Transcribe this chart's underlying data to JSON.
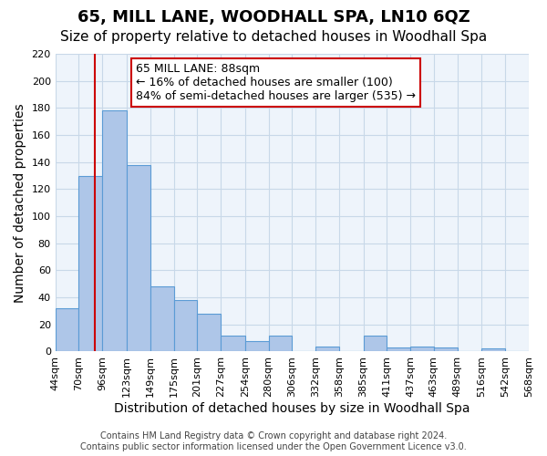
{
  "title": "65, MILL LANE, WOODHALL SPA, LN10 6QZ",
  "subtitle": "Size of property relative to detached houses in Woodhall Spa",
  "xlabel": "Distribution of detached houses by size in Woodhall Spa",
  "ylabel": "Number of detached properties",
  "bar_edges": [
    44,
    70,
    96,
    123,
    149,
    175,
    201,
    227,
    254,
    280,
    306,
    332,
    358,
    385,
    411,
    437,
    463,
    489,
    516,
    542,
    568
  ],
  "bar_heights": [
    32,
    130,
    178,
    138,
    48,
    38,
    28,
    12,
    8,
    12,
    0,
    4,
    0,
    12,
    3,
    4,
    3,
    0,
    2,
    0
  ],
  "bar_color": "#aec6e8",
  "bar_edgecolor": "#5b9bd5",
  "grid_color": "#c8d8e8",
  "background_color": "#eef4fb",
  "vline_x": 88,
  "vline_color": "#cc0000",
  "annotation_box_text": "65 MILL LANE: 88sqm\n← 16% of detached houses are smaller (100)\n84% of semi-detached houses are larger (535) →",
  "ylim": [
    0,
    220
  ],
  "yticks": [
    0,
    20,
    40,
    60,
    80,
    100,
    120,
    140,
    160,
    180,
    200,
    220
  ],
  "tick_labels": [
    "44sqm",
    "70sqm",
    "96sqm",
    "123sqm",
    "149sqm",
    "175sqm",
    "201sqm",
    "227sqm",
    "254sqm",
    "280sqm",
    "306sqm",
    "332sqm",
    "358sqm",
    "385sqm",
    "411sqm",
    "437sqm",
    "463sqm",
    "489sqm",
    "516sqm",
    "542sqm",
    "568sqm"
  ],
  "footnote": "Contains HM Land Registry data © Crown copyright and database right 2024.\nContains public sector information licensed under the Open Government Licence v3.0.",
  "title_fontsize": 13,
  "subtitle_fontsize": 11,
  "label_fontsize": 10,
  "tick_fontsize": 8,
  "annot_fontsize": 9,
  "footnote_fontsize": 7
}
